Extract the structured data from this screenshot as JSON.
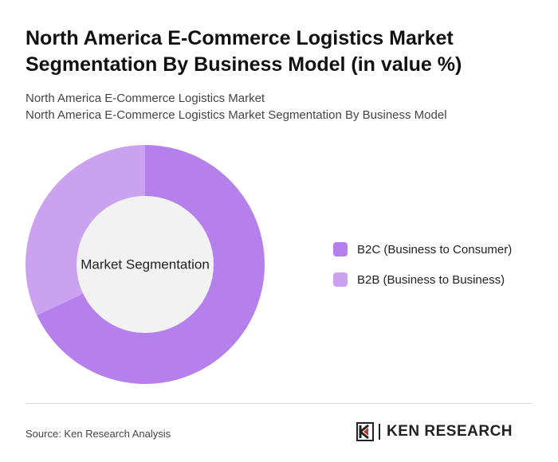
{
  "header": {
    "title": "North America E-Commerce Logistics Market Segmentation By Business Model (in value %)",
    "subtitle_line1": "North America E-Commerce Logistics Market",
    "subtitle_line2": "North America E-Commerce Logistics Market Segmentation By Business Model"
  },
  "chart_data": {
    "type": "pie",
    "variant": "donut",
    "center_label": "Market Segmentation",
    "categories": [
      "B2C (Business to Consumer)",
      "B2B (Business to Business)"
    ],
    "values": [
      68,
      32
    ],
    "colors": [
      "#b57fec",
      "#caa2f0"
    ],
    "legend_position": "right"
  },
  "footer": {
    "source": "Source: Ken Research Analysis",
    "logo_text": "KEN RESEARCH"
  },
  "colors": {
    "center_fill": "#f2f2f2",
    "divider": "#d8d8d8"
  }
}
